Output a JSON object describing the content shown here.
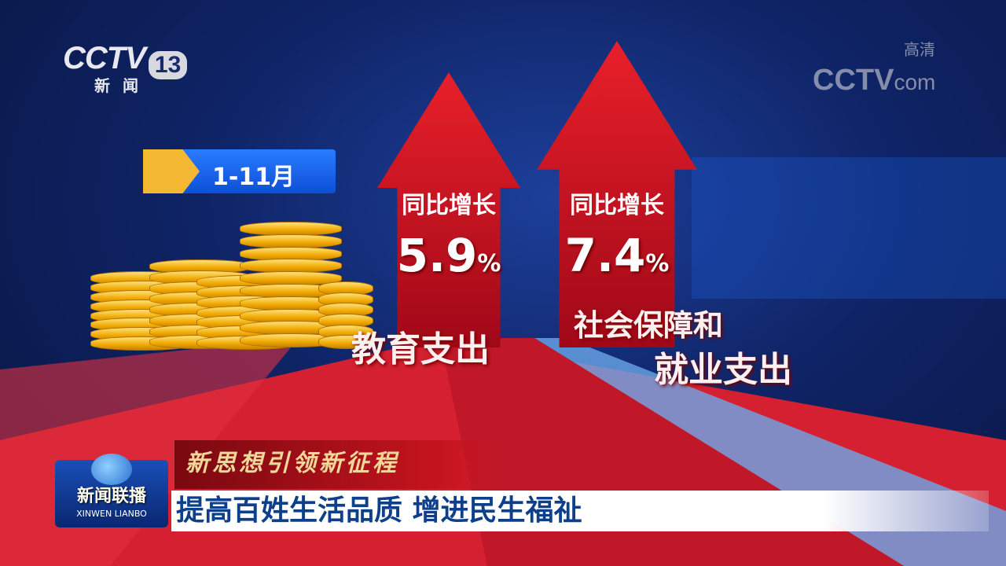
{
  "channel_logo": {
    "brand": "CCTV",
    "number": "13",
    "name": "新闻"
  },
  "watermark": {
    "brand": "CCTV",
    "suffix": "com",
    "hd": "高清"
  },
  "period_tag": "1-11月",
  "stats": [
    {
      "label": "同比增长",
      "value": "5.9",
      "unit": "%",
      "category": "教育支出"
    },
    {
      "label": "同比增长",
      "value": "7.4",
      "unit": "%",
      "category_line1": "社会保障和",
      "category_line2": "就业支出"
    }
  ],
  "program": {
    "name_cn": "新闻联播",
    "name_en": "XINWEN LIANBO"
  },
  "topic": "新思想引领新征程",
  "headline": "提高百姓生活品质 增进民生福祉",
  "colors": {
    "arrow_red": "#d41a24",
    "headline_blue": "#0e3f8a",
    "topic_gold": "#f2d79a",
    "tag_blue": "#1e6cf0"
  }
}
